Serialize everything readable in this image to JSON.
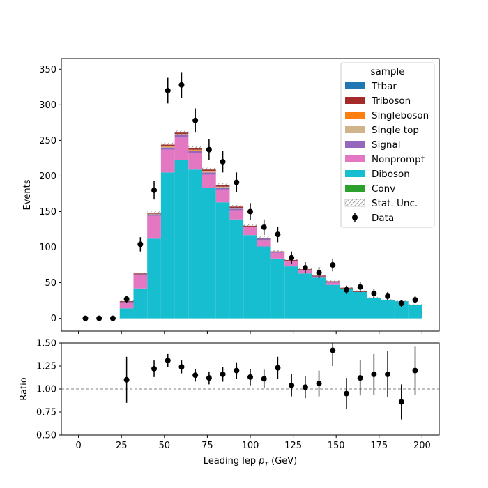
{
  "chart_data": [
    {
      "type": "bar",
      "panel": "main",
      "stacked": true,
      "ylabel": "Events",
      "xlabel": "",
      "xlim": [
        -10,
        210
      ],
      "ylim": [
        -18,
        365
      ],
      "yticks": [
        0,
        50,
        100,
        150,
        200,
        250,
        300,
        350
      ],
      "bin_edges": [
        0,
        8,
        16,
        24,
        32,
        40,
        48,
        56,
        64,
        72,
        80,
        88,
        96,
        104,
        112,
        120,
        128,
        136,
        144,
        152,
        160,
        168,
        176,
        184,
        192,
        200
      ],
      "series": [
        {
          "name": "Diboson",
          "color": "#17becf",
          "values": [
            0,
            0,
            0,
            14,
            42,
            112,
            205,
            222,
            209,
            183,
            163,
            139,
            117,
            101,
            84,
            73,
            63,
            57,
            47,
            42,
            37,
            29,
            26,
            24,
            19
          ]
        },
        {
          "name": "Nonprompt",
          "color": "#e377c2",
          "values": [
            0,
            0,
            0,
            8,
            19,
            32,
            32,
            32,
            23,
            19,
            18,
            13,
            11,
            9,
            8,
            7,
            4,
            1,
            3,
            0,
            0,
            0,
            0,
            0,
            0
          ]
        },
        {
          "name": "Signal",
          "color": "#9467bd",
          "values": [
            0,
            0,
            0,
            1,
            1,
            2,
            3,
            4,
            3,
            3,
            3,
            2,
            1,
            2,
            1,
            1,
            1,
            1,
            1,
            0,
            0,
            0,
            0,
            0,
            0
          ]
        },
        {
          "name": "Single top",
          "color": "#d2b48c",
          "values": [
            0,
            0,
            0,
            0,
            0,
            1,
            1,
            1,
            1,
            1,
            1,
            1,
            0,
            0,
            0,
            0,
            0,
            0,
            0,
            0,
            0,
            0,
            0,
            0,
            0
          ]
        },
        {
          "name": "Singleboson",
          "color": "#ff7f0e",
          "values": [
            0,
            0,
            0,
            0,
            0,
            0,
            1,
            0,
            1,
            1,
            0,
            0,
            0,
            0,
            0,
            0,
            0,
            0,
            0,
            0,
            0,
            0,
            0,
            0,
            0
          ]
        },
        {
          "name": "Triboson",
          "color": "#a52a2a",
          "values": [
            0,
            0,
            0,
            1,
            1,
            1,
            2,
            2,
            2,
            2,
            2,
            2,
            1,
            1,
            1,
            1,
            1,
            1,
            1,
            1,
            1,
            0,
            0,
            0,
            0
          ]
        },
        {
          "name": "Ttbar",
          "color": "#1f77b4",
          "values": [
            0,
            0,
            0,
            0,
            0,
            0,
            0,
            0,
            0,
            0,
            0,
            0,
            0,
            0,
            0,
            0,
            0,
            0,
            0,
            0,
            0,
            0,
            0,
            0,
            0
          ]
        },
        {
          "name": "Conv",
          "color": "#2ca02c",
          "values": [
            0,
            0,
            0,
            0,
            0,
            0,
            0,
            0,
            0,
            0,
            0,
            0,
            0,
            0,
            0,
            0,
            0,
            0,
            0,
            0,
            0,
            0,
            0,
            0,
            0
          ]
        }
      ],
      "stat_unc_label": "Stat. Unc.",
      "data_points": {
        "name": "Data",
        "x": [
          4,
          12,
          20,
          28,
          36,
          44,
          52,
          60,
          68,
          76,
          84,
          92,
          100,
          108,
          116,
          124,
          132,
          140,
          148,
          156,
          164,
          172,
          180,
          188,
          196
        ],
        "y": [
          0,
          0,
          0,
          27,
          104,
          180,
          320,
          328,
          278,
          237,
          220,
          191,
          150,
          128,
          118,
          85,
          71,
          64,
          75,
          40,
          44,
          35,
          31,
          21,
          26
        ],
        "yerr": [
          0,
          0,
          0,
          5,
          10,
          13,
          18,
          18,
          17,
          15,
          15,
          14,
          12,
          11,
          11,
          9,
          8,
          8,
          9,
          6,
          7,
          6,
          6,
          5,
          5
        ]
      },
      "legend": {
        "title": "sample",
        "placement": "top-right",
        "entries": [
          "Ttbar",
          "Triboson",
          "Singleboson",
          "Single top",
          "Signal",
          "Nonprompt",
          "Diboson",
          "Conv",
          "Stat. Unc.",
          "Data"
        ]
      }
    },
    {
      "type": "scatter",
      "panel": "ratio",
      "ylabel": "Ratio",
      "xlabel": "Leading lep p_T (GeV)",
      "xlabel_main": "Leading lep ",
      "xlabel_sub": "T",
      "xlabel_unit": " (GeV)",
      "xlim": [
        -10,
        210
      ],
      "ylim": [
        0.5,
        1.5
      ],
      "yticks": [
        "0.50",
        "0.75",
        "1.00",
        "1.25",
        "1.50"
      ],
      "xticks": [
        0,
        25,
        50,
        75,
        100,
        125,
        150,
        175,
        200
      ],
      "reference_line": 1.0,
      "points": {
        "x": [
          28,
          44,
          52,
          60,
          68,
          76,
          84,
          92,
          100,
          108,
          116,
          124,
          132,
          140,
          148,
          156,
          164,
          172,
          180,
          188,
          196
        ],
        "y": [
          1.1,
          1.22,
          1.31,
          1.24,
          1.15,
          1.12,
          1.16,
          1.2,
          1.13,
          1.11,
          1.23,
          1.04,
          1.02,
          1.06,
          1.42,
          0.95,
          1.12,
          1.16,
          1.16,
          0.86,
          1.2
        ],
        "yerr": [
          0.25,
          0.09,
          0.07,
          0.07,
          0.07,
          0.07,
          0.08,
          0.09,
          0.09,
          0.1,
          0.12,
          0.12,
          0.12,
          0.14,
          0.17,
          0.17,
          0.19,
          0.22,
          0.25,
          0.19,
          0.26
        ]
      }
    }
  ]
}
